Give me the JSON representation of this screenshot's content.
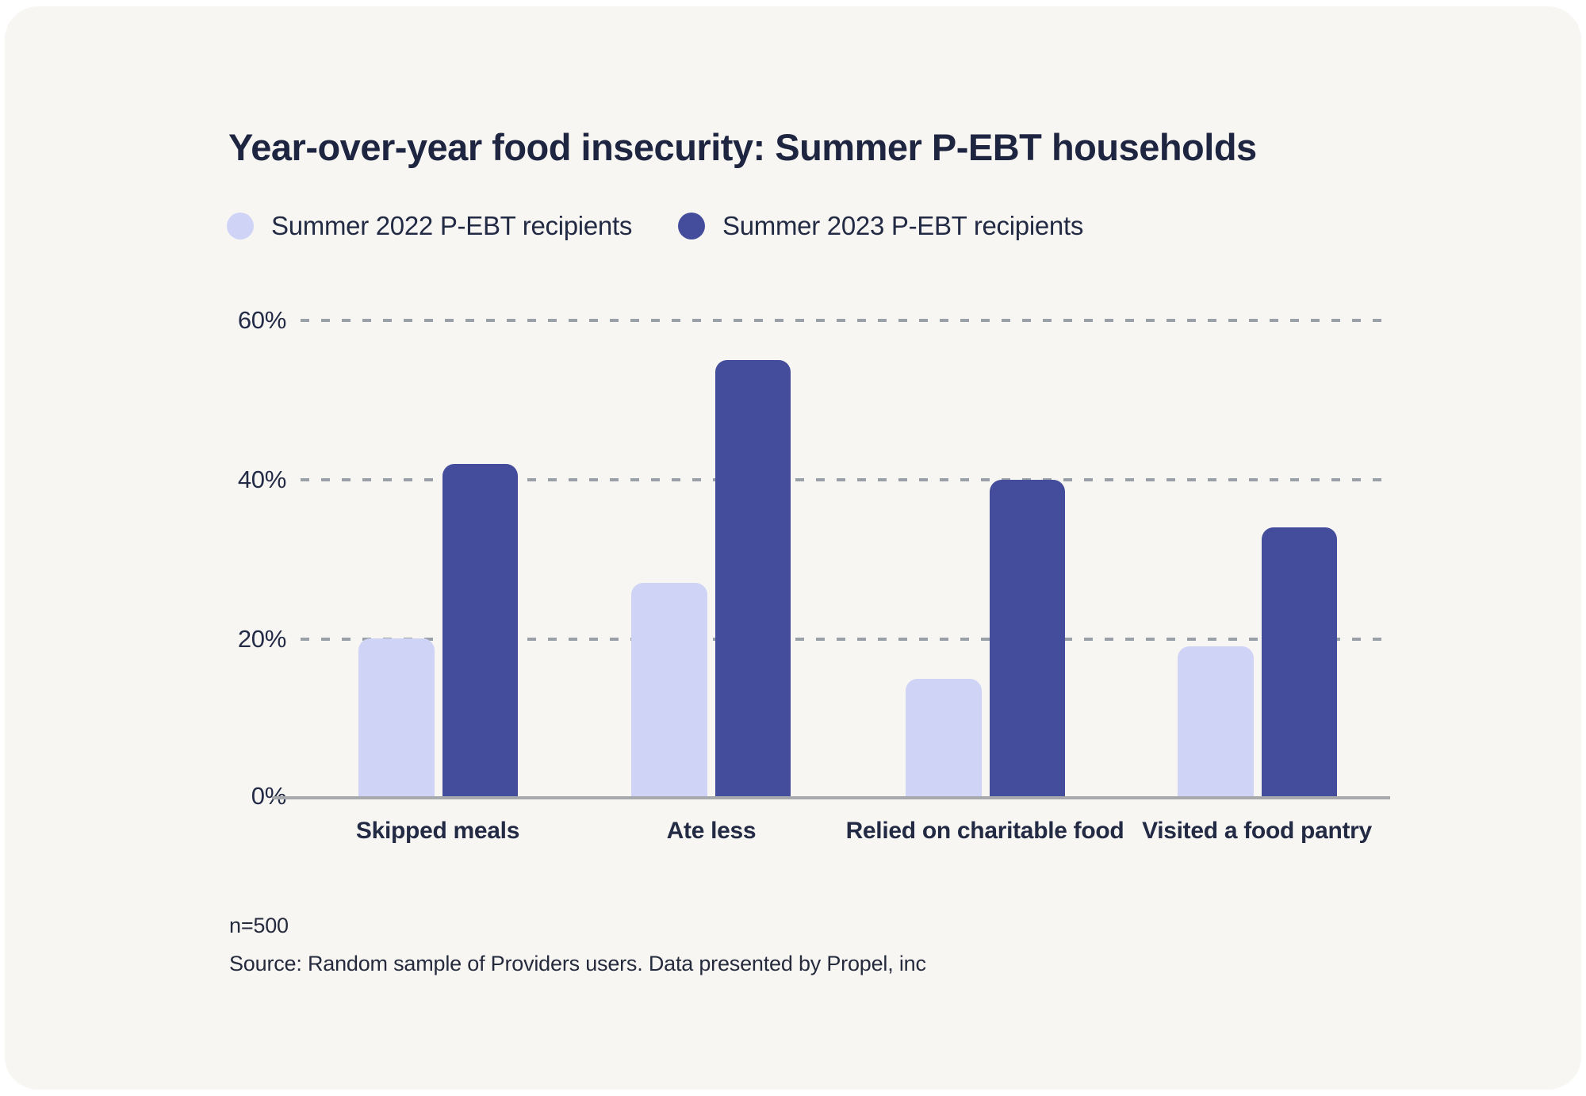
{
  "title": "Year-over-year food insecurity: Summer P-EBT households",
  "legend": {
    "items": [
      {
        "label": "Summer 2022 P-EBT recipients",
        "color": "#cfd4f7"
      },
      {
        "label": "Summer 2023 P-EBT recipients",
        "color": "#434d9c"
      }
    ]
  },
  "chart_data": {
    "type": "bar",
    "title": "Year-over-year food insecurity: Summer P-EBT households",
    "categories": [
      "Skipped meals",
      "Ate less",
      "Relied on charitable food",
      "Visited a food pantry"
    ],
    "series": [
      {
        "name": "Summer 2022 P-EBT recipients",
        "color": "#cfd4f7",
        "values": [
          20,
          27,
          15,
          19
        ]
      },
      {
        "name": "Summer 2023 P-EBT recipients",
        "color": "#434d9c",
        "values": [
          42,
          55,
          40,
          34
        ]
      }
    ],
    "unit": "%",
    "xlabel": "",
    "ylabel": "",
    "ylim": [
      0,
      60
    ],
    "y_ticks": [
      "60%",
      "40%",
      "20%",
      "0%"
    ],
    "grid": "horizontal dashed at 20/40/60, solid axis at 0",
    "legend_position": "top-left",
    "colors": {
      "card_background": "#f8f6f3",
      "page_background": "#ffffff",
      "text": "#222a44",
      "gridline": "#9aa0a8",
      "axis_line": "#a7a9ad"
    }
  },
  "footer": {
    "sample_size": "n=500",
    "source": "Source: Random sample of Providers users. Data presented by Propel, inc"
  }
}
